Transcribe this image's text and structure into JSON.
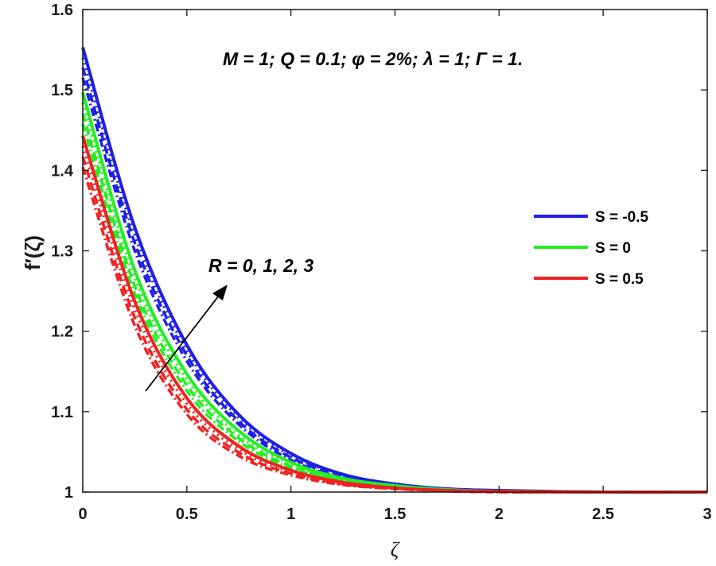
{
  "chart_data": {
    "type": "line",
    "xlabel": "ζ",
    "ylabel": "f′(ζ)",
    "xlim": [
      0,
      3
    ],
    "ylim": [
      1,
      1.6
    ],
    "x_ticks": [
      "0",
      "0.5",
      "1",
      "1.5",
      "2",
      "2.5",
      "3"
    ],
    "y_ticks": [
      "1",
      "1.1",
      "1.2",
      "1.3",
      "1.4",
      "1.5",
      "1.6"
    ],
    "grid": false,
    "legend_position": "right",
    "annotation_params": "M = 1; Q = 0.1; φ = 2%; λ = 1; Γ = 1.",
    "annotation_arrow": "R = 0, 1, 2, 3",
    "x": [
      0,
      0.25,
      0.5,
      0.75,
      1,
      1.25,
      1.5,
      1.75,
      2,
      2.5,
      3
    ],
    "series": [
      {
        "name": "S = -0.5",
        "color": "#1f1fe6",
        "curves": [
          {
            "R": 3,
            "style": "solid",
            "values": [
              1.553,
              1.329,
              1.183,
              1.096,
              1.048,
              1.022,
              1.01,
              1.004,
              1.002,
              1.0,
              1.0
            ]
          },
          {
            "R": 2,
            "style": "dotted",
            "values": [
              1.54,
              1.319,
              1.176,
              1.092,
              1.045,
              1.021,
              1.009,
              1.004,
              1.002,
              1.0,
              1.0
            ]
          },
          {
            "R": 1,
            "style": "dashed",
            "values": [
              1.528,
              1.31,
              1.17,
              1.088,
              1.043,
              1.02,
              1.009,
              1.004,
              1.001,
              1.0,
              1.0
            ]
          },
          {
            "R": 0,
            "style": "dashdot",
            "values": [
              1.515,
              1.3,
              1.163,
              1.084,
              1.04,
              1.018,
              1.008,
              1.003,
              1.001,
              1.0,
              1.0
            ]
          }
        ]
      },
      {
        "name": "S = 0",
        "color": "#22ee22",
        "curves": [
          {
            "R": 3,
            "style": "solid",
            "values": [
              1.497,
              1.276,
              1.147,
              1.076,
              1.037,
              1.017,
              1.008,
              1.003,
              1.001,
              1.0,
              1.0
            ]
          },
          {
            "R": 2,
            "style": "dotted",
            "values": [
              1.484,
              1.266,
              1.14,
              1.071,
              1.035,
              1.016,
              1.007,
              1.003,
              1.001,
              1.0,
              1.0
            ]
          },
          {
            "R": 1,
            "style": "dashed",
            "values": [
              1.471,
              1.256,
              1.133,
              1.067,
              1.032,
              1.015,
              1.006,
              1.002,
              1.001,
              1.0,
              1.0
            ]
          },
          {
            "R": 0,
            "style": "dashdot",
            "values": [
              1.458,
              1.247,
              1.126,
              1.063,
              1.03,
              1.014,
              1.006,
              1.002,
              1.001,
              1.0,
              1.0
            ]
          }
        ]
      },
      {
        "name": "S = 0.5",
        "color": "#ee2222",
        "curves": [
          {
            "R": 3,
            "style": "solid",
            "values": [
              1.443,
              1.237,
              1.117,
              1.057,
              1.027,
              1.012,
              1.005,
              1.002,
              1.001,
              1.0,
              1.0
            ]
          },
          {
            "R": 2,
            "style": "dotted",
            "values": [
              1.43,
              1.227,
              1.11,
              1.053,
              1.025,
              1.011,
              1.005,
              1.002,
              1.001,
              1.0,
              1.0
            ]
          },
          {
            "R": 1,
            "style": "dashed",
            "values": [
              1.417,
              1.217,
              1.103,
              1.049,
              1.023,
              1.01,
              1.004,
              1.002,
              1.0,
              1.0,
              1.0
            ]
          },
          {
            "R": 0,
            "style": "dashdot",
            "values": [
              1.404,
              1.207,
              1.097,
              1.045,
              1.021,
              1.009,
              1.004,
              1.001,
              1.0,
              1.0,
              1.0
            ]
          }
        ]
      }
    ]
  }
}
